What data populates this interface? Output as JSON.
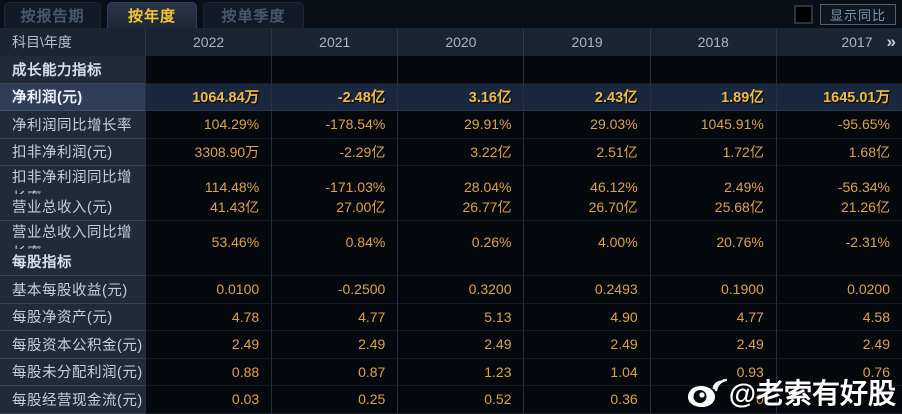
{
  "tabs": [
    {
      "label": "按报告期",
      "active": false
    },
    {
      "label": "按年度",
      "active": true
    },
    {
      "label": "按单季度",
      "active": false
    }
  ],
  "yoy_toggle": {
    "label": "显示同比",
    "checked": false
  },
  "more_years_icon": "»",
  "colors": {
    "accent_gold": "#f6c62f",
    "value_gold": "#dda24f",
    "highlight_row_bg": "#19273f",
    "label_col_bg": "#202b3a",
    "header_bg": "#1b2532"
  },
  "watermark": {
    "icon": "weibo-icon",
    "text": "@老索有好股"
  },
  "table": {
    "corner_header": "科目\\年度",
    "years": [
      "2022",
      "2021",
      "2020",
      "2019",
      "2018",
      "2017"
    ],
    "rows": [
      {
        "type": "section",
        "label": "成长能力指标",
        "values": [
          "",
          "",
          "",
          "",
          "",
          ""
        ]
      },
      {
        "type": "highlight",
        "label": "净利润(元)",
        "values": [
          "1064.84万",
          "-2.48亿",
          "3.16亿",
          "2.43亿",
          "1.89亿",
          "1645.01万"
        ]
      },
      {
        "type": "normal",
        "label": "净利润同比增长率",
        "values": [
          "104.29%",
          "-178.54%",
          "29.91%",
          "29.03%",
          "1045.91%",
          "-95.65%"
        ]
      },
      {
        "type": "normal",
        "label": "扣非净利润(元)",
        "values": [
          "3308.90万",
          "-2.29亿",
          "3.22亿",
          "2.51亿",
          "1.72亿",
          "1.68亿"
        ]
      },
      {
        "type": "normal",
        "label": "扣非净利润同比增长率",
        "values": [
          "114.48%",
          "-171.03%",
          "28.04%",
          "46.12%",
          "2.49%",
          "-56.34%"
        ]
      },
      {
        "type": "normal",
        "label": "营业总收入(元)",
        "values": [
          "41.43亿",
          "27.00亿",
          "26.77亿",
          "26.70亿",
          "25.68亿",
          "21.26亿"
        ]
      },
      {
        "type": "normal",
        "label": "营业总收入同比增长率",
        "values": [
          "53.46%",
          "0.84%",
          "0.26%",
          "4.00%",
          "20.76%",
          "-2.31%"
        ]
      },
      {
        "type": "section",
        "label": "每股指标",
        "values": [
          "",
          "",
          "",
          "",
          "",
          ""
        ]
      },
      {
        "type": "normal",
        "label": "基本每股收益(元)",
        "values": [
          "0.0100",
          "-0.2500",
          "0.3200",
          "0.2493",
          "0.1900",
          "0.0200"
        ]
      },
      {
        "type": "normal",
        "label": "每股净资产(元)",
        "values": [
          "4.78",
          "4.77",
          "5.13",
          "4.90",
          "4.77",
          "4.58"
        ]
      },
      {
        "type": "normal",
        "label": "每股资本公积金(元)",
        "values": [
          "2.49",
          "2.49",
          "2.49",
          "2.49",
          "2.49",
          "2.49"
        ]
      },
      {
        "type": "normal",
        "label": "每股未分配利润(元)",
        "values": [
          "0.88",
          "0.87",
          "1.23",
          "1.04",
          "0.93",
          "0.76"
        ]
      },
      {
        "type": "normal",
        "label": "每股经营现金流(元)",
        "values": [
          "0.03",
          "0.25",
          "0.52",
          "0.36",
          "0",
          ""
        ]
      }
    ]
  }
}
